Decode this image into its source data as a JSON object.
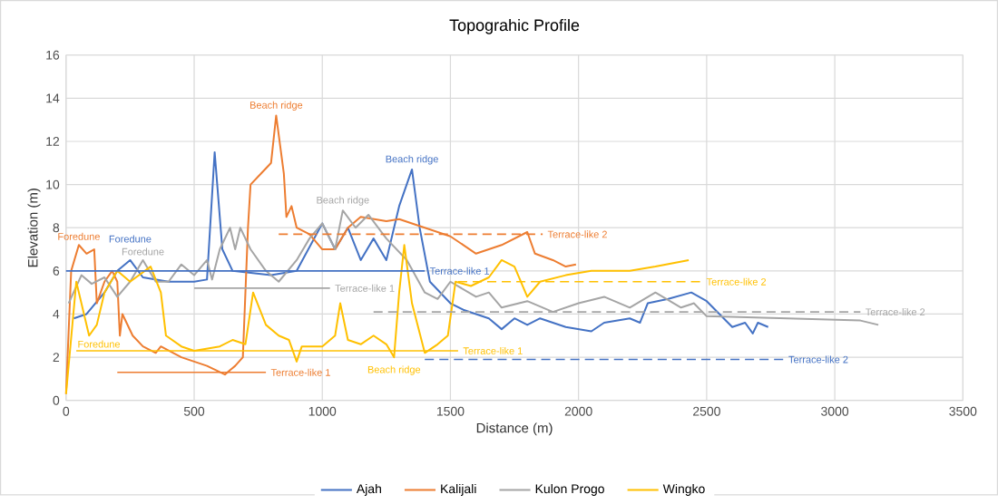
{
  "chart_data": {
    "type": "line",
    "title": "Topograhic Profile",
    "xlabel": "Distance (m)",
    "ylabel": "Elevation (m)",
    "xlim": [
      0,
      3500
    ],
    "xticks": [
      0,
      500,
      1000,
      1500,
      2000,
      2500,
      3000,
      3500
    ],
    "ylim": [
      0,
      16
    ],
    "yticks": [
      0,
      2,
      4,
      6,
      8,
      10,
      12,
      14,
      16
    ],
    "grid": true,
    "legend": "bottom",
    "series": [
      {
        "name": "Ajah",
        "color": "#4472c4",
        "x": [
          30,
          80,
          150,
          200,
          250,
          300,
          400,
          500,
          550,
          580,
          610,
          650,
          800,
          900,
          1000,
          1050,
          1100,
          1150,
          1200,
          1250,
          1300,
          1350,
          1380,
          1420,
          1500,
          1550,
          1650,
          1700,
          1750,
          1800,
          1850,
          1950,
          2050,
          2100,
          2200,
          2240,
          2270,
          2350,
          2440,
          2500,
          2550,
          2600,
          2650,
          2680,
          2700,
          2740
        ],
        "values": [
          3.8,
          4,
          5,
          6,
          6.5,
          5.7,
          5.5,
          5.5,
          5.6,
          11.5,
          7,
          6,
          5.8,
          6,
          8.2,
          7,
          8,
          6.5,
          7.5,
          6.5,
          9,
          10.7,
          8,
          5.5,
          4.5,
          4.2,
          3.8,
          3.3,
          3.8,
          3.5,
          3.8,
          3.4,
          3.2,
          3.6,
          3.8,
          3.6,
          4.5,
          4.7,
          5,
          4.6,
          4,
          3.4,
          3.6,
          3.1,
          3.6,
          3.4
        ]
      },
      {
        "name": "Kalijali",
        "color": "#ed7d31",
        "x": [
          0,
          20,
          50,
          80,
          110,
          120,
          150,
          180,
          200,
          210,
          220,
          260,
          300,
          350,
          370,
          450,
          550,
          620,
          660,
          690,
          710,
          720,
          760,
          800,
          820,
          850,
          860,
          880,
          900,
          950,
          1000,
          1050,
          1100,
          1150,
          1250,
          1300,
          1400,
          1500,
          1600,
          1700,
          1750,
          1800,
          1830,
          1900,
          1950,
          1990
        ],
        "values": [
          0.3,
          6,
          7.2,
          6.8,
          7,
          4.5,
          5.5,
          6,
          5.5,
          3,
          4,
          3,
          2.5,
          2.2,
          2.5,
          2,
          1.6,
          1.2,
          1.6,
          2,
          8,
          10,
          10.5,
          11,
          13.2,
          10.5,
          8.5,
          9,
          8,
          7.7,
          7,
          7,
          8,
          8.5,
          8.3,
          8.4,
          8,
          7.6,
          6.8,
          7.2,
          7.5,
          7.8,
          6.8,
          6.5,
          6.2,
          6.3
        ]
      },
      {
        "name": "Kulon Progo",
        "color": "#a5a5a5",
        "x": [
          10,
          60,
          100,
          150,
          200,
          250,
          300,
          350,
          400,
          450,
          500,
          550,
          570,
          600,
          640,
          660,
          680,
          720,
          780,
          830,
          900,
          950,
          1000,
          1050,
          1080,
          1130,
          1180,
          1250,
          1330,
          1400,
          1450,
          1500,
          1600,
          1650,
          1700,
          1800,
          1900,
          2000,
          2100,
          2200,
          2300,
          2400,
          2450,
          2500,
          2800,
          3100,
          3170
        ],
        "values": [
          4.5,
          5.8,
          5.4,
          5.7,
          4.8,
          5.5,
          6.5,
          5.5,
          5.5,
          6.3,
          5.8,
          6.5,
          5.6,
          7,
          8,
          7,
          8,
          7,
          6,
          5.5,
          6.5,
          7.5,
          8.2,
          7,
          8.8,
          8,
          8.6,
          7.5,
          6.5,
          5,
          4.7,
          5.5,
          4.8,
          5,
          4.3,
          4.6,
          4.1,
          4.5,
          4.8,
          4.3,
          5,
          4.3,
          4.5,
          3.9,
          3.8,
          3.7,
          3.5
        ]
      },
      {
        "name": "Wingko",
        "color": "#ffc000",
        "x": [
          0,
          40,
          70,
          90,
          120,
          150,
          200,
          250,
          330,
          370,
          390,
          450,
          500,
          600,
          650,
          700,
          730,
          780,
          830,
          870,
          900,
          920,
          1000,
          1050,
          1070,
          1100,
          1150,
          1200,
          1250,
          1280,
          1300,
          1320,
          1350,
          1400,
          1450,
          1490,
          1520,
          1580,
          1650,
          1700,
          1750,
          1800,
          1850,
          1950,
          2050,
          2200,
          2300,
          2430
        ],
        "values": [
          0.3,
          5.5,
          4,
          3,
          3.5,
          5,
          6,
          5.5,
          6.2,
          5,
          3,
          2.5,
          2.3,
          2.5,
          2.8,
          2.6,
          5,
          3.5,
          3,
          2.8,
          1.8,
          2.5,
          2.5,
          3,
          4.5,
          2.8,
          2.6,
          3,
          2.6,
          2,
          5,
          7.2,
          4.5,
          2.2,
          2.6,
          3,
          5.5,
          5.3,
          5.7,
          6.5,
          6.2,
          4.8,
          5.5,
          5.8,
          6,
          6,
          6.2,
          6.5
        ]
      },
      {
        "color": "#4472c4",
        "line_style": "solid",
        "x": [
          0,
          1400
        ],
        "values": [
          6,
          6
        ]
      },
      {
        "color": "#4472c4",
        "line_style": "dashed",
        "x": [
          1400,
          2800
        ],
        "values": [
          1.9,
          1.9
        ]
      },
      {
        "color": "#ed7d31",
        "line_style": "solid",
        "x": [
          200,
          780
        ],
        "values": [
          1.3,
          1.3
        ]
      },
      {
        "color": "#ed7d31",
        "line_style": "dashed",
        "x": [
          830,
          1860
        ],
        "values": [
          7.7,
          7.7
        ]
      },
      {
        "color": "#a5a5a5",
        "line_style": "solid",
        "x": [
          500,
          1030
        ],
        "values": [
          5.2,
          5.2
        ]
      },
      {
        "color": "#a5a5a5",
        "line_style": "dashed",
        "x": [
          1200,
          3100
        ],
        "values": [
          4.1,
          4.1
        ]
      },
      {
        "color": "#ffc000",
        "line_style": "solid",
        "x": [
          40,
          1530
        ],
        "values": [
          2.3,
          2.3
        ]
      },
      {
        "color": "#ffc000",
        "line_style": "dashed",
        "x": [
          1530,
          2480
        ],
        "values": [
          5.5,
          5.5
        ]
      }
    ],
    "annotations": [
      {
        "text": "Foredune",
        "x": 50,
        "y": 7.2
      },
      {
        "text": "Beach ridge",
        "x": 820,
        "y": 13.2
      },
      {
        "text": "Terrace-like 1",
        "x": 780,
        "y": 1.3
      },
      {
        "text": "Terrace-like 2",
        "x": 1860,
        "y": 7.7
      },
      {
        "text": "Foredune",
        "x": 250,
        "y": 6.5
      },
      {
        "text": "Beach ridge",
        "x": 1350,
        "y": 10.7
      },
      {
        "text": "Terrace-like 1",
        "x": 1400,
        "y": 6
      },
      {
        "text": "Terrace-like 2",
        "x": 2800,
        "y": 1.9
      },
      {
        "text": "Foredune",
        "x": 300,
        "y": 6.5
      },
      {
        "text": "Beach ridge",
        "x": 1080,
        "y": 8.8
      },
      {
        "text": "Terrace-like 1",
        "x": 1030,
        "y": 5.2
      },
      {
        "text": "Terrace-like 2",
        "x": 3100,
        "y": 4.1
      },
      {
        "text": "Foredune",
        "x": 40,
        "y": 2.3
      },
      {
        "text": "Beach ridge",
        "x": 1280,
        "y": 2
      },
      {
        "text": "Terrace-like 1",
        "x": 1530,
        "y": 2.3
      },
      {
        "text": "Terrace-like 2",
        "x": 2480,
        "y": 5.5
      }
    ]
  }
}
